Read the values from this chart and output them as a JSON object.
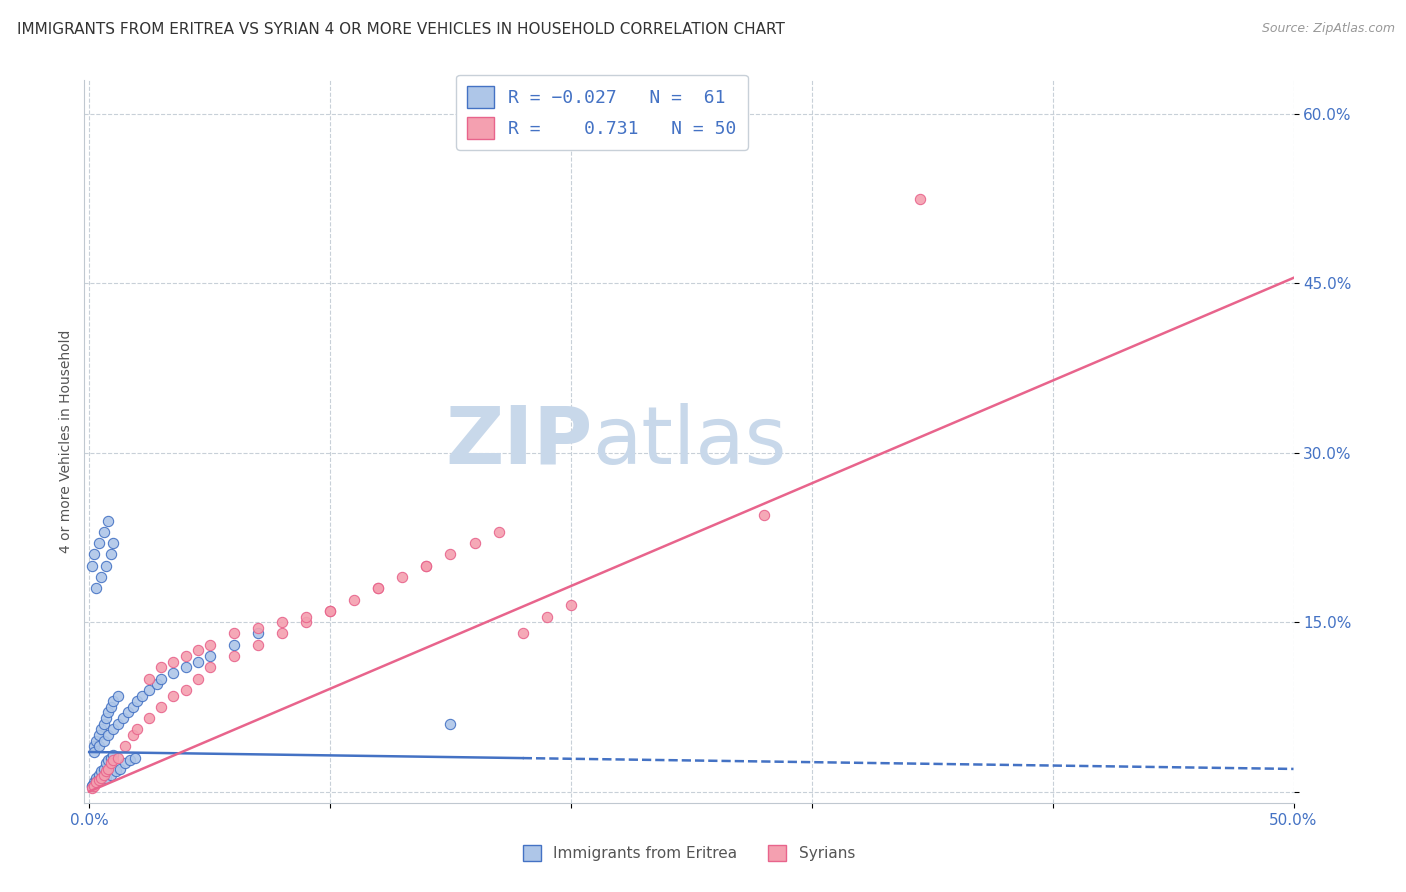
{
  "title": "IMMIGRANTS FROM ERITREA VS SYRIAN 4 OR MORE VEHICLES IN HOUSEHOLD CORRELATION CHART",
  "source": "Source: ZipAtlas.com",
  "ylabel": "4 or more Vehicles in Household",
  "xlabel_eritrea": "Immigrants from Eritrea",
  "xlabel_syrian": "Syrians",
  "xlim": [
    0.0,
    0.5
  ],
  "ylim": [
    0.0,
    0.63
  ],
  "yticks": [
    0.0,
    0.15,
    0.3,
    0.45,
    0.6
  ],
  "ytick_labels": [
    "",
    "15.0%",
    "30.0%",
    "45.0%",
    "60.0%"
  ],
  "xticks": [
    0.0,
    0.1,
    0.2,
    0.3,
    0.4,
    0.5
  ],
  "xtick_labels": [
    "0.0%",
    "",
    "",
    "",
    "",
    "50.0%"
  ],
  "R_eritrea": -0.027,
  "N_eritrea": 61,
  "R_syrian": 0.731,
  "N_syrian": 50,
  "eritrea_color": "#aec6e8",
  "syrian_color": "#f4a0b0",
  "eritrea_line_color": "#4472c4",
  "syrian_line_color": "#e8648c",
  "watermark_zip": "ZIP",
  "watermark_atlas": "atlas",
  "watermark_color": "#c8d8ea",
  "title_fontsize": 11,
  "background_color": "#ffffff",
  "scatter_size": 55,
  "eritrea_x": [
    0.001,
    0.002,
    0.003,
    0.004,
    0.005,
    0.006,
    0.007,
    0.008,
    0.009,
    0.01,
    0.002,
    0.003,
    0.004,
    0.005,
    0.006,
    0.007,
    0.008,
    0.009,
    0.01,
    0.012,
    0.001,
    0.003,
    0.005,
    0.007,
    0.009,
    0.011,
    0.013,
    0.015,
    0.017,
    0.019,
    0.002,
    0.004,
    0.006,
    0.008,
    0.01,
    0.012,
    0.014,
    0.016,
    0.018,
    0.02,
    0.022,
    0.025,
    0.028,
    0.03,
    0.035,
    0.04,
    0.045,
    0.05,
    0.06,
    0.07,
    0.001,
    0.002,
    0.004,
    0.006,
    0.008,
    0.003,
    0.005,
    0.007,
    0.009,
    0.01,
    0.15
  ],
  "eritrea_y": [
    0.005,
    0.008,
    0.012,
    0.015,
    0.018,
    0.02,
    0.025,
    0.028,
    0.03,
    0.032,
    0.04,
    0.045,
    0.05,
    0.055,
    0.06,
    0.065,
    0.07,
    0.075,
    0.08,
    0.085,
    0.005,
    0.008,
    0.01,
    0.012,
    0.015,
    0.018,
    0.02,
    0.025,
    0.028,
    0.03,
    0.035,
    0.04,
    0.045,
    0.05,
    0.055,
    0.06,
    0.065,
    0.07,
    0.075,
    0.08,
    0.085,
    0.09,
    0.095,
    0.1,
    0.105,
    0.11,
    0.115,
    0.12,
    0.13,
    0.14,
    0.2,
    0.21,
    0.22,
    0.23,
    0.24,
    0.18,
    0.19,
    0.2,
    0.21,
    0.22,
    0.06
  ],
  "syrian_x": [
    0.001,
    0.002,
    0.003,
    0.004,
    0.005,
    0.006,
    0.007,
    0.008,
    0.009,
    0.01,
    0.012,
    0.015,
    0.018,
    0.02,
    0.025,
    0.03,
    0.035,
    0.04,
    0.045,
    0.05,
    0.06,
    0.07,
    0.08,
    0.09,
    0.1,
    0.11,
    0.12,
    0.13,
    0.14,
    0.15,
    0.16,
    0.17,
    0.18,
    0.19,
    0.2,
    0.025,
    0.03,
    0.035,
    0.04,
    0.045,
    0.05,
    0.06,
    0.07,
    0.08,
    0.09,
    0.1,
    0.12,
    0.14,
    0.28,
    0.345
  ],
  "syrian_y": [
    0.003,
    0.005,
    0.008,
    0.01,
    0.012,
    0.015,
    0.018,
    0.02,
    0.025,
    0.028,
    0.03,
    0.04,
    0.05,
    0.055,
    0.065,
    0.075,
    0.085,
    0.09,
    0.1,
    0.11,
    0.12,
    0.13,
    0.14,
    0.15,
    0.16,
    0.17,
    0.18,
    0.19,
    0.2,
    0.21,
    0.22,
    0.23,
    0.14,
    0.155,
    0.165,
    0.1,
    0.11,
    0.115,
    0.12,
    0.125,
    0.13,
    0.14,
    0.145,
    0.15,
    0.155,
    0.16,
    0.18,
    0.2,
    0.245,
    0.525
  ],
  "eritrea_line_x": [
    0.0,
    0.5
  ],
  "eritrea_line_y": [
    0.035,
    0.02
  ],
  "syrian_line_x": [
    0.0,
    0.5
  ],
  "syrian_line_y": [
    0.0,
    0.455
  ]
}
